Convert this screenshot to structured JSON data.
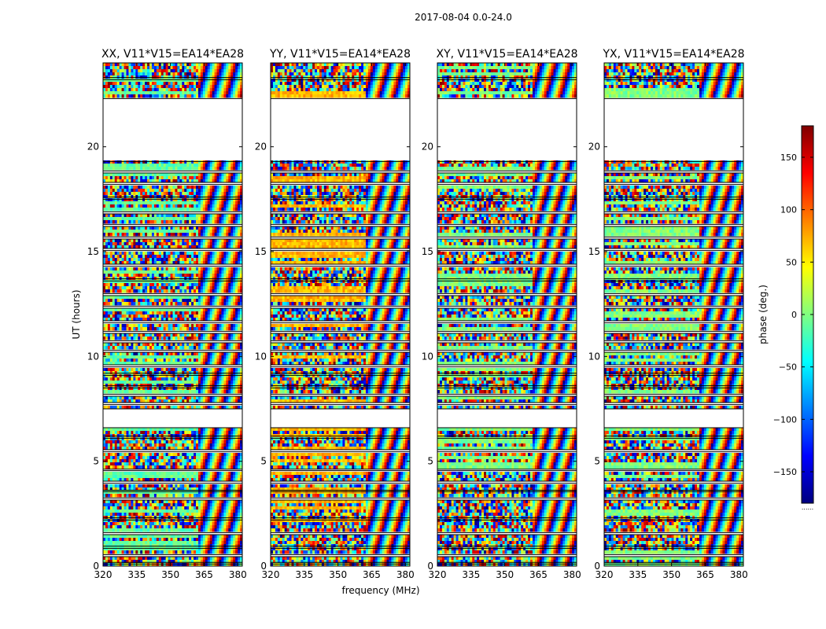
{
  "figure": {
    "title": "2017-08-04 0.0-24.0",
    "xlabel": "frequency (MHz)",
    "ylabel": "UT (hours)"
  },
  "colorbar": {
    "label": "phase (deg.)",
    "range": [
      -180,
      180
    ],
    "ticks": [
      150,
      100,
      50,
      0,
      -50,
      -100,
      -150
    ],
    "tick_labels": [
      "150",
      "100",
      "50",
      "0",
      "−50",
      "−100",
      "−150"
    ],
    "colormap": [
      "#00007f",
      "#0000ff",
      "#0080ff",
      "#00ffff",
      "#80ff80",
      "#ffff00",
      "#ff8000",
      "#ff0000",
      "#7f0000"
    ],
    "footer_note": "......"
  },
  "chart_data": [
    {
      "type": "heatmap",
      "title": "XX, V11*V15=EA14*EA28",
      "x_range": [
        320,
        382
      ],
      "y_range": [
        0,
        24
      ],
      "xticks": [
        320,
        335,
        350,
        365,
        380
      ],
      "xtick_labels": [
        "320",
        "335",
        "350",
        "365",
        "380"
      ],
      "yticks": [
        0,
        5,
        10,
        15,
        20
      ],
      "ytick_labels": [
        "0",
        "5",
        "10",
        "15",
        "20"
      ],
      "value": "phase (deg.)",
      "coherent_bias_deg": -10
    },
    {
      "type": "heatmap",
      "title": "YY, V11*V15=EA14*EA28",
      "x_range": [
        320,
        382
      ],
      "y_range": [
        0,
        24
      ],
      "xticks": [
        320,
        335,
        350,
        365,
        380
      ],
      "xtick_labels": [
        "320",
        "335",
        "350",
        "365",
        "380"
      ],
      "yticks": [
        0,
        5,
        10,
        15,
        20
      ],
      "ytick_labels": [
        "0",
        "5",
        "10",
        "15",
        "20"
      ],
      "value": "phase (deg.)",
      "coherent_bias_deg": 70
    },
    {
      "type": "heatmap",
      "title": "XY, V11*V15=EA14*EA28",
      "x_range": [
        320,
        382
      ],
      "y_range": [
        0,
        24
      ],
      "xticks": [
        320,
        335,
        350,
        365,
        380
      ],
      "xtick_labels": [
        "320",
        "335",
        "350",
        "365",
        "380"
      ],
      "yticks": [
        0,
        5,
        10,
        15,
        20
      ],
      "ytick_labels": [
        "0",
        "5",
        "10",
        "15",
        "20"
      ],
      "value": "phase (deg.)",
      "coherent_bias_deg": 0
    },
    {
      "type": "heatmap",
      "title": "YX, V11*V15=EA14*EA28",
      "x_range": [
        320,
        382
      ],
      "y_range": [
        0,
        24
      ],
      "xticks": [
        320,
        335,
        350,
        365,
        380
      ],
      "xtick_labels": [
        "320",
        "335",
        "350",
        "365",
        "380"
      ],
      "yticks": [
        0,
        5,
        10,
        15,
        20
      ],
      "ytick_labels": [
        "0",
        "5",
        "10",
        "15",
        "20"
      ],
      "value": "phase (deg.)",
      "coherent_bias_deg": 0
    }
  ],
  "data_gaps_ut_hours": [
    [
      0.1,
      0.18
    ],
    [
      0.45,
      0.55
    ],
    [
      0.85,
      0.95
    ],
    [
      1.5,
      1.6
    ],
    [
      2.2,
      2.3
    ],
    [
      3.15,
      3.25
    ],
    [
      3.55,
      3.62
    ],
    [
      3.95,
      4.05
    ],
    [
      4.55,
      4.62
    ],
    [
      5.45,
      5.55
    ],
    [
      6.1,
      6.2
    ],
    [
      6.6,
      7.5
    ],
    [
      7.7,
      7.8
    ],
    [
      8.1,
      8.2
    ],
    [
      8.5,
      8.6
    ],
    [
      9.1,
      9.2
    ],
    [
      9.5,
      9.6
    ],
    [
      10.2,
      10.3
    ],
    [
      10.65,
      10.75
    ],
    [
      11.1,
      11.2
    ],
    [
      11.6,
      11.7
    ],
    [
      12.3,
      12.4
    ],
    [
      12.9,
      13.0
    ],
    [
      13.6,
      13.7
    ],
    [
      14.3,
      14.4
    ],
    [
      15.05,
      15.15
    ],
    [
      15.6,
      15.7
    ],
    [
      16.2,
      16.3
    ],
    [
      16.8,
      16.9
    ],
    [
      17.5,
      17.6
    ],
    [
      18.2,
      18.3
    ],
    [
      18.75,
      18.85
    ],
    [
      19.3,
      22.3
    ],
    [
      23.2,
      23.3
    ]
  ]
}
